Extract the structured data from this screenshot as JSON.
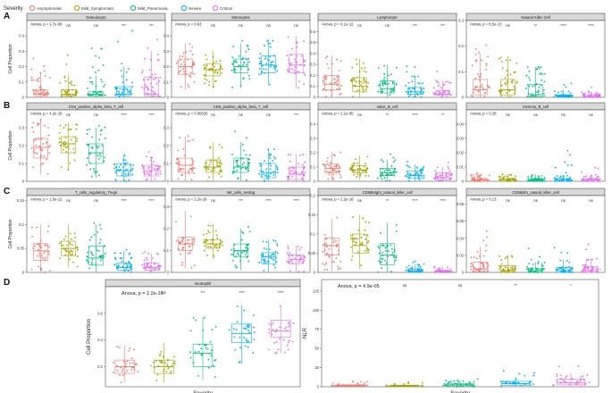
{
  "legend": {
    "title": "Severity",
    "items": [
      {
        "label": "Asymptomatic",
        "color": "#f8766d"
      },
      {
        "label": "Mild_Symptomatic",
        "color": "#a3a500"
      },
      {
        "label": "Mild_Pneumonia",
        "color": "#00bf7d"
      },
      {
        "label": "Severe",
        "color": "#00b0f6"
      },
      {
        "label": "Critical",
        "color": "#e76bf3"
      }
    ]
  },
  "chart_data": [
    {
      "letter": "A",
      "type": "boxplot",
      "title": "Granulocyte",
      "stat": "Anova, p = 1.7e-08",
      "ylabel": "Cell Proportion",
      "ylim": [
        0,
        0.5
      ],
      "ticks": [
        0,
        0.1,
        0.2,
        0.3,
        0.4
      ],
      "sig": [
        "",
        "ns",
        "ns",
        "***",
        "***"
      ],
      "medians": [
        0.02,
        0.02,
        0.02,
        0.02,
        0.02
      ],
      "q1": [
        0.01,
        0.01,
        0.01,
        0.01,
        0.01
      ],
      "q3": [
        0.05,
        0.05,
        0.04,
        0.07,
        0.13
      ],
      "wlo": [
        0,
        0,
        0,
        0,
        0
      ],
      "whi": [
        0.16,
        0.15,
        0.14,
        0.2,
        0.3
      ],
      "spread": [
        0.3,
        0.35,
        0.4,
        0.45,
        0.42
      ]
    },
    {
      "letter": "",
      "type": "boxplot",
      "title": "Monocytes",
      "stat": "Anova, p = 0.63",
      "ylabel": "",
      "ylim": [
        0,
        0.5
      ],
      "ticks": [
        0,
        0.1,
        0.2,
        0.3,
        0.4
      ],
      "sig": [
        "",
        "ns",
        "ns",
        "ns",
        "ns"
      ],
      "medians": [
        0.2,
        0.18,
        0.2,
        0.21,
        0.21
      ],
      "q1": [
        0.15,
        0.14,
        0.16,
        0.16,
        0.16
      ],
      "q3": [
        0.25,
        0.22,
        0.25,
        0.27,
        0.28
      ],
      "wlo": [
        0.05,
        0.06,
        0.06,
        0.08,
        0.06
      ],
      "whi": [
        0.35,
        0.3,
        0.35,
        0.38,
        0.4
      ],
      "spread": [
        0.38,
        0.32,
        0.38,
        0.4,
        0.42
      ]
    },
    {
      "letter": "",
      "type": "boxplot",
      "title": "Lymphocyte",
      "stat": "Anova, p = 6.1e-12",
      "ylabel": "",
      "ylim": [
        0,
        0.7
      ],
      "ticks": [
        0,
        0.1,
        0.2,
        0.3,
        0.4,
        0.5,
        0.6
      ],
      "sig": [
        "",
        "ns",
        "ns",
        "***",
        "***"
      ],
      "medians": [
        0.12,
        0.1,
        0.08,
        0.05,
        0.03
      ],
      "q1": [
        0.07,
        0.05,
        0.04,
        0.03,
        0.02
      ],
      "q3": [
        0.2,
        0.18,
        0.15,
        0.09,
        0.06
      ],
      "wlo": [
        0,
        0,
        0,
        0,
        0
      ],
      "whi": [
        0.38,
        0.35,
        0.3,
        0.2,
        0.15
      ],
      "spread": [
        0.45,
        0.42,
        0.4,
        0.3,
        0.25
      ]
    },
    {
      "letter": "",
      "type": "boxplot",
      "title": "Natural Killer Cell",
      "stat": "Anova, p = 6.5e-13",
      "ylabel": "",
      "ylim": [
        0,
        0.3
      ],
      "ticks": [
        0,
        0.1,
        0.2,
        0.3
      ],
      "sig": [
        "",
        "ns",
        "**",
        "****",
        "****"
      ],
      "medians": [
        0.03,
        0.03,
        0.01,
        0.005,
        0.004
      ],
      "q1": [
        0.01,
        0.01,
        0.003,
        0.002,
        0.001
      ],
      "q3": [
        0.07,
        0.07,
        0.05,
        0.01,
        0.01
      ],
      "wlo": [
        0,
        0,
        0,
        0,
        0
      ],
      "whi": [
        0.17,
        0.16,
        0.12,
        0.03,
        0.02
      ],
      "spread": [
        0.22,
        0.22,
        0.16,
        0.06,
        0.04
      ]
    },
    {
      "letter": "B",
      "type": "boxplot",
      "title": "CD4_positive_alpha_beta_T_cell",
      "stat": "Anova, p = 4.2e-16",
      "ylabel": "Cell Proportion",
      "ylim": [
        0,
        0.4
      ],
      "ticks": [
        0,
        0.1,
        0.2,
        0.3
      ],
      "sig": [
        "",
        "ns",
        "ns",
        "****",
        "****"
      ],
      "medians": [
        0.19,
        0.21,
        0.16,
        0.06,
        0.06
      ],
      "q1": [
        0.13,
        0.16,
        0.1,
        0.03,
        0.03
      ],
      "q3": [
        0.24,
        0.25,
        0.21,
        0.1,
        0.09
      ],
      "wlo": [
        0.04,
        0.06,
        0.02,
        0,
        0
      ],
      "whi": [
        0.35,
        0.33,
        0.3,
        0.15,
        0.14
      ],
      "spread": [
        0.36,
        0.34,
        0.33,
        0.2,
        0.18
      ]
    },
    {
      "letter": "",
      "type": "boxplot",
      "title": "CD8_positive_alpha_beta_T_cell",
      "stat": "Anova, p = 0.00026",
      "ylabel": "",
      "ylim": [
        0,
        0.4
      ],
      "ticks": [
        0,
        0.1,
        0.2,
        0.3
      ],
      "sig": [
        "",
        "ns",
        "ns",
        "ns",
        "***"
      ],
      "medians": [
        0.09,
        0.08,
        0.08,
        0.05,
        0.04
      ],
      "q1": [
        0.05,
        0.05,
        0.05,
        0.02,
        0.01
      ],
      "q3": [
        0.13,
        0.12,
        0.13,
        0.1,
        0.08
      ],
      "wlo": [
        0,
        0,
        0,
        0,
        0
      ],
      "whi": [
        0.25,
        0.22,
        0.22,
        0.18,
        0.15
      ],
      "spread": [
        0.3,
        0.26,
        0.28,
        0.22,
        0.18
      ]
    },
    {
      "letter": "",
      "type": "boxplot",
      "title": "naive_B_cell",
      "stat": "Anova, p = 2.1e-05",
      "ylabel": "",
      "ylim": [
        0,
        0.5
      ],
      "ticks": [
        0,
        0.1,
        0.2,
        0.3,
        0.4
      ],
      "sig": [
        "",
        "ns",
        "**",
        "****",
        "**"
      ],
      "medians": [
        0.09,
        0.08,
        0.06,
        0.04,
        0.03
      ],
      "q1": [
        0.06,
        0.06,
        0.04,
        0.02,
        0.01
      ],
      "q3": [
        0.12,
        0.11,
        0.09,
        0.07,
        0.06
      ],
      "wlo": [
        0.01,
        0.01,
        0,
        0,
        0
      ],
      "whi": [
        0.2,
        0.18,
        0.15,
        0.12,
        0.1
      ],
      "spread": [
        0.24,
        0.22,
        0.2,
        0.15,
        0.14
      ]
    },
    {
      "letter": "",
      "type": "boxplot",
      "title": "memory_B_cell",
      "stat": "Anova, p = 0.28",
      "ylabel": "",
      "ylim": [
        0,
        0.05
      ],
      "ticks": [
        0,
        0.01,
        0.02,
        0.03,
        0.04
      ],
      "sig": [
        "",
        "ns",
        "ns",
        "ns",
        "ns"
      ],
      "medians": [
        0.001,
        0.001,
        0.001,
        0.001,
        0.001
      ],
      "q1": [
        0,
        0,
        0,
        0,
        0
      ],
      "q3": [
        0.002,
        0.002,
        0.002,
        0.002,
        0.002
      ],
      "wlo": [
        0,
        0,
        0,
        0,
        0
      ],
      "whi": [
        0.005,
        0.005,
        0.005,
        0.004,
        0.005
      ],
      "spread": [
        0.006,
        0.006,
        0.006,
        0.03,
        0.01
      ]
    },
    {
      "letter": "C",
      "type": "boxplot",
      "title": "T_cells_regulatory_Tregs",
      "stat": "Anova, p = 1.5e-12",
      "ylabel": "Cell Proportion",
      "ylim": [
        0,
        0.16
      ],
      "ticks": [
        0,
        0.05,
        0.1,
        0.15
      ],
      "sig": [
        "",
        "ns",
        "ns",
        "****",
        "****"
      ],
      "medians": [
        0.045,
        0.05,
        0.03,
        0.01,
        0.01
      ],
      "q1": [
        0.025,
        0.035,
        0.015,
        0.005,
        0.005
      ],
      "q3": [
        0.06,
        0.065,
        0.055,
        0.02,
        0.02
      ],
      "wlo": [
        0,
        0.01,
        0,
        0,
        0
      ],
      "whi": [
        0.1,
        0.1,
        0.1,
        0.045,
        0.04
      ],
      "spread": [
        0.11,
        0.1,
        0.11,
        0.05,
        0.05
      ]
    },
    {
      "letter": "",
      "type": "boxplot",
      "title": "NK_cells_resting",
      "stat": "Anova, p = 2.2e-16",
      "ylabel": "",
      "ylim": [
        0,
        0.35
      ],
      "ticks": [
        0,
        0.1,
        0.2,
        0.3
      ],
      "sig": [
        "",
        "ns",
        "***",
        "****",
        "****"
      ],
      "medians": [
        0.13,
        0.13,
        0.1,
        0.07,
        0.06
      ],
      "q1": [
        0.1,
        0.11,
        0.07,
        0.04,
        0.04
      ],
      "q3": [
        0.16,
        0.15,
        0.13,
        0.09,
        0.08
      ],
      "wlo": [
        0.02,
        0.06,
        0.01,
        0,
        0
      ],
      "whi": [
        0.28,
        0.22,
        0.2,
        0.15,
        0.12
      ],
      "spread": [
        0.28,
        0.24,
        0.22,
        0.16,
        0.14
      ]
    },
    {
      "letter": "",
      "type": "boxplot",
      "title": "CD56bright_natural_killer_cell",
      "stat": "Anova, p = 2.2e-16",
      "ylabel": "",
      "ylim": [
        0,
        0.2
      ],
      "ticks": [
        0,
        0.05,
        0.1,
        0.15,
        0.2
      ],
      "sig": [
        "",
        "ns",
        "**",
        "****",
        "****"
      ],
      "medians": [
        0.07,
        0.07,
        0.045,
        0.003,
        0.003
      ],
      "q1": [
        0.045,
        0.05,
        0.02,
        0.001,
        0.001
      ],
      "q3": [
        0.09,
        0.1,
        0.075,
        0.008,
        0.006
      ],
      "wlo": [
        0.005,
        0.01,
        0,
        0,
        0
      ],
      "whi": [
        0.14,
        0.15,
        0.13,
        0.02,
        0.015
      ],
      "spread": [
        0.15,
        0.16,
        0.14,
        0.03,
        0.02
      ]
    },
    {
      "letter": "",
      "type": "boxplot",
      "title": "CD56dim_natural_killer_cell",
      "stat": "Anova, p = 0.13",
      "ylabel": "",
      "ylim": [
        0,
        0.09
      ],
      "ticks": [
        0,
        0.02,
        0.04,
        0.06,
        0.08
      ],
      "sig": [
        "",
        "ns",
        "ns",
        "ns",
        "ns"
      ],
      "medians": [
        0.004,
        0.002,
        0.002,
        0.002,
        0.002
      ],
      "q1": [
        0.001,
        0,
        0,
        0,
        0
      ],
      "q3": [
        0.012,
        0.008,
        0.005,
        0.006,
        0.007
      ],
      "wlo": [
        0,
        0,
        0,
        0,
        0
      ],
      "whi": [
        0.03,
        0.02,
        0.012,
        0.015,
        0.016
      ],
      "spread": [
        0.05,
        0.055,
        0.03,
        0.03,
        0.035
      ]
    },
    {
      "letter": "D",
      "type": "boxplot",
      "title": "neutrophil",
      "stat": "Anova, p = 2.2e-16",
      "ylabel": "Cell Proportion",
      "xlabel": "Severity",
      "ylim": [
        0.05,
        0.8
      ],
      "ticks": [
        0.2,
        0.4,
        0.6
      ],
      "sig": [
        "",
        "ns",
        "***",
        "****",
        "****"
      ],
      "medians": [
        0.2,
        0.2,
        0.3,
        0.45,
        0.47
      ],
      "q1": [
        0.15,
        0.15,
        0.2,
        0.38,
        0.42
      ],
      "q3": [
        0.25,
        0.25,
        0.37,
        0.52,
        0.55
      ],
      "wlo": [
        0.08,
        0.08,
        0.1,
        0.22,
        0.3
      ],
      "whi": [
        0.36,
        0.38,
        0.57,
        0.66,
        0.66
      ],
      "spread": [
        0.32,
        0.32,
        0.5,
        0.48,
        0.4
      ]
    },
    {
      "letter": "",
      "type": "boxplot",
      "title": "",
      "stat": "Anova, p = 4.9e-05",
      "ylabel": "NLR",
      "xlabel": "Severity",
      "ylim": [
        0,
        140
      ],
      "ticks": [
        0,
        25,
        50,
        75,
        100,
        125
      ],
      "sig": [
        "",
        "ns",
        "ns",
        "**",
        "*"
      ],
      "medians": [
        1.5,
        1.2,
        2.5,
        4,
        5
      ],
      "q1": [
        0.8,
        0.6,
        1.2,
        2,
        2.5
      ],
      "q3": [
        2.5,
        2,
        4,
        7,
        10
      ],
      "wlo": [
        0,
        0,
        0,
        0,
        0
      ],
      "whi": [
        5,
        4,
        8,
        13,
        18
      ],
      "spread": [
        8,
        6,
        14,
        30,
        40
      ]
    }
  ]
}
